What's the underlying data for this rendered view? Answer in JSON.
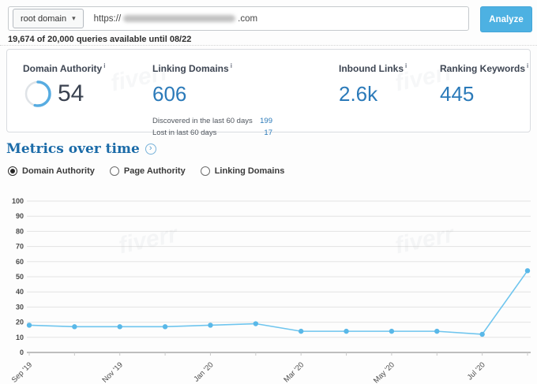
{
  "icons": {
    "caret_down": "▾",
    "chevron_right": "›"
  },
  "watermark": "fiverr",
  "search_bar": {
    "scope_value": "root domain",
    "url_prefix": "https://",
    "url_suffix": ".com",
    "analyze_label": "Analyze",
    "queries_note": "19,674 of 20,000 queries available until 08/22"
  },
  "metrics": {
    "info_icon": "i",
    "cards": [
      {
        "label": "Domain Authority",
        "value": "54",
        "gauge_percent": 54
      },
      {
        "label": "Linking Domains",
        "value": "606",
        "details": [
          {
            "label": "Discovered in the last 60 days",
            "value": "199"
          },
          {
            "label": "Lost in last 60 days",
            "value": "17"
          }
        ]
      },
      {
        "label": "Inbound Links",
        "value": "2.6k"
      },
      {
        "label": "Ranking Keywords",
        "value": "445"
      }
    ]
  },
  "metrics_over_time": {
    "title": "Metrics over time",
    "radios": [
      {
        "label": "Domain Authority",
        "selected": true
      },
      {
        "label": "Page Authority",
        "selected": false
      },
      {
        "label": "Linking Domains",
        "selected": false
      }
    ]
  },
  "chart_data": {
    "type": "line",
    "x": [
      "Sep '19",
      "Oct '19",
      "Nov '19",
      "Dec '19",
      "Jan '20",
      "Feb '20",
      "Mar '20",
      "Apr '20",
      "May '20",
      "Jun '20",
      "Jul '20",
      "Aug '20"
    ],
    "series": [
      {
        "name": "Domain Authority",
        "values": [
          18,
          17,
          17,
          17,
          18,
          19,
          14,
          14,
          14,
          14,
          12,
          54
        ]
      }
    ],
    "x_tick_labels": [
      "Sep '19",
      "Nov '19",
      "Jan '20",
      "Mar '20",
      "May '20",
      "Jul '20"
    ],
    "y_ticks": [
      0,
      10,
      20,
      30,
      40,
      50,
      60,
      70,
      80,
      90,
      100
    ],
    "ylim": [
      0,
      100
    ],
    "grid": true,
    "legend": false,
    "line_color": "#6fc5ee",
    "marker_color": "#59b8e8",
    "grid_color": "#e3e3e3",
    "axis_color": "#a9a9a9",
    "tick_label_color": "#4a4a4a"
  },
  "colors": {
    "accent_blue": "#2b7ab9",
    "button_blue": "#4db1e2",
    "heading_blue": "#1b6ba8"
  }
}
